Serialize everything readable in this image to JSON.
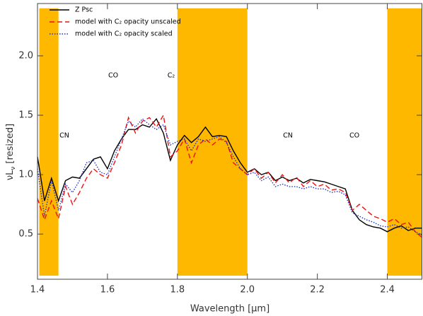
{
  "chart_data": {
    "type": "line",
    "x_label": "Wavelength [μm]",
    "y_label": {
      "text": "νL",
      "sub": "ν",
      "after": " [resized]"
    },
    "x": [
      1.4,
      1.42,
      1.44,
      1.46,
      1.48,
      1.5,
      1.52,
      1.54,
      1.56,
      1.58,
      1.6,
      1.62,
      1.64,
      1.66,
      1.68,
      1.7,
      1.72,
      1.74,
      1.76,
      1.78,
      1.8,
      1.82,
      1.84,
      1.86,
      1.88,
      1.9,
      1.92,
      1.94,
      1.96,
      1.98,
      2.0,
      2.02,
      2.04,
      2.06,
      2.08,
      2.1,
      2.12,
      2.14,
      2.16,
      2.18,
      2.2,
      2.22,
      2.24,
      2.26,
      2.28,
      2.3,
      2.32,
      2.34,
      2.36,
      2.38,
      2.4,
      2.42,
      2.44,
      2.46,
      2.48,
      2.5
    ],
    "series": [
      {
        "name": "Z Psc",
        "color": "#000000",
        "dash": "none",
        "values": [
          1.15,
          0.78,
          0.97,
          0.78,
          0.95,
          0.98,
          0.97,
          1.05,
          1.13,
          1.15,
          1.05,
          1.2,
          1.3,
          1.38,
          1.38,
          1.42,
          1.4,
          1.47,
          1.35,
          1.12,
          1.25,
          1.33,
          1.27,
          1.32,
          1.4,
          1.32,
          1.33,
          1.32,
          1.2,
          1.1,
          1.02,
          1.05,
          1.0,
          1.02,
          0.95,
          0.98,
          0.95,
          0.97,
          0.93,
          0.96,
          0.95,
          0.94,
          0.92,
          0.9,
          0.88,
          0.7,
          0.62,
          0.58,
          0.56,
          0.55,
          0.52,
          0.55,
          0.57,
          0.53,
          0.55,
          0.55
        ]
      },
      {
        "name": "model with C₂ opacity unscaled",
        "color": "#ee1111",
        "dash": "7,4",
        "values": [
          0.8,
          0.62,
          0.78,
          0.63,
          0.9,
          0.75,
          0.85,
          0.97,
          1.05,
          1.0,
          0.97,
          1.1,
          1.25,
          1.48,
          1.35,
          1.45,
          1.48,
          1.4,
          1.5,
          1.15,
          1.2,
          1.3,
          1.1,
          1.25,
          1.3,
          1.25,
          1.3,
          1.28,
          1.1,
          1.05,
          1.0,
          1.05,
          0.97,
          1.02,
          0.93,
          1.0,
          0.93,
          0.98,
          0.9,
          0.95,
          0.9,
          0.92,
          0.87,
          0.88,
          0.85,
          0.7,
          0.75,
          0.7,
          0.65,
          0.63,
          0.6,
          0.63,
          0.58,
          0.6,
          0.52,
          0.47
        ]
      },
      {
        "name": "model with C₂ opacity scaled",
        "color": "#2233cc",
        "dash": "1.5,2",
        "values": [
          1.05,
          0.65,
          0.95,
          0.7,
          0.92,
          0.85,
          0.95,
          1.1,
          1.12,
          1.02,
          1.0,
          1.15,
          1.3,
          1.45,
          1.4,
          1.47,
          1.42,
          1.38,
          1.42,
          1.25,
          1.28,
          1.3,
          1.2,
          1.3,
          1.28,
          1.3,
          1.32,
          1.27,
          1.15,
          1.05,
          1.0,
          1.02,
          0.95,
          0.98,
          0.9,
          0.92,
          0.9,
          0.9,
          0.88,
          0.9,
          0.88,
          0.88,
          0.85,
          0.86,
          0.83,
          0.68,
          0.65,
          0.62,
          0.6,
          0.57,
          0.56,
          0.58,
          0.55,
          0.56,
          0.52,
          0.49
        ]
      }
    ],
    "shaded_x": [
      [
        1.405,
        1.46
      ],
      [
        1.8,
        2.0
      ],
      [
        2.4,
        2.5
      ]
    ],
    "shaded_y": [
      0.15,
      2.4
    ],
    "shaded_color": "#ffb800",
    "annotations": [
      "CN",
      "CO",
      "C₂",
      "CN",
      "CO"
    ],
    "xlim": [
      1.4,
      2.5
    ],
    "ylim": [
      0.12,
      2.44
    ],
    "xticks": [
      1.4,
      1.6,
      1.8,
      {
        "value": 2,
        "label": "2.0"
      },
      2.2,
      2.4
    ],
    "yticks": [
      0.5,
      {
        "value": 1,
        "label": "1.0"
      },
      1.5,
      {
        "value": 2,
        "label": "2.0"
      }
    ],
    "legend": "upper left"
  }
}
